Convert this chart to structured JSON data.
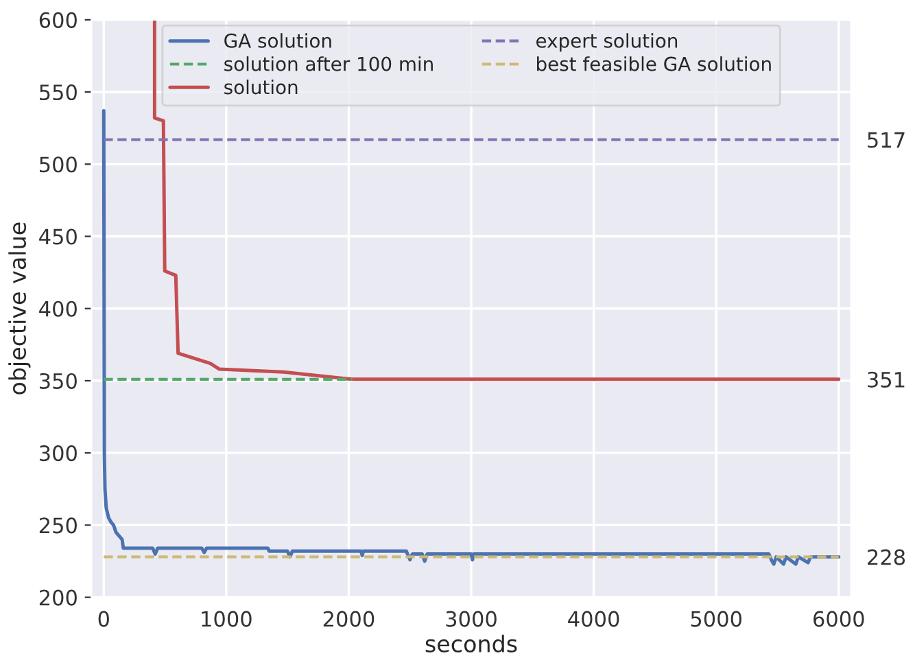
{
  "chart_data": {
    "type": "line",
    "xlabel": "seconds",
    "ylabel": "objective value",
    "xlim": [
      -100,
      6100
    ],
    "ylim": [
      200,
      600
    ],
    "xticks": [
      0,
      1000,
      2000,
      3000,
      4000,
      5000,
      6000
    ],
    "yticks": [
      200,
      250,
      300,
      350,
      400,
      450,
      500,
      550,
      600
    ],
    "grid": true,
    "legend": "top",
    "series": [
      {
        "name": "GA solution",
        "color": "#4c72b0",
        "line_style": "solid",
        "x": [
          0,
          5,
          10,
          20,
          40,
          60,
          80,
          100,
          130,
          150,
          160,
          400,
          420,
          440,
          800,
          820,
          840,
          1340,
          1350,
          1500,
          1520,
          1540,
          2100,
          2110,
          2120,
          2470,
          2480,
          2500,
          2520,
          2600,
          2620,
          2640,
          3000,
          3010,
          3020,
          5430,
          5450,
          5470,
          5490,
          5550,
          5570,
          5650,
          5670,
          5750,
          5770,
          6000
        ],
        "values": [
          537,
          300,
          275,
          262,
          255,
          252,
          250,
          245,
          242,
          240,
          234,
          234,
          230,
          234,
          234,
          231,
          234,
          234,
          232,
          232,
          228,
          232,
          232,
          229,
          232,
          232,
          230,
          226,
          230,
          230,
          225,
          230,
          230,
          226,
          230,
          230,
          226,
          223,
          228,
          223,
          228,
          223,
          228,
          224,
          228,
          228
        ]
      },
      {
        "name": "solution after 100 min",
        "color": "#55a868",
        "line_style": "dashed",
        "x": [
          0,
          2030
        ],
        "values": [
          351,
          351
        ]
      },
      {
        "name": "solution",
        "color": "#c44e52",
        "line_style": "solid",
        "x": [
          415,
          415,
          487,
          498,
          588,
          607,
          869,
          944,
          1468,
          2030,
          6000
        ],
        "values": [
          600,
          532,
          530,
          426,
          423,
          369,
          362,
          358,
          356,
          351,
          351
        ]
      },
      {
        "name": "expert solution",
        "color": "#8172b2",
        "line_style": "dashed",
        "x": [
          0,
          6000
        ],
        "values": [
          517,
          517
        ]
      },
      {
        "name": "best feasible GA solution",
        "color": "#ccb974",
        "line_style": "dashed",
        "x": [
          0,
          6000
        ],
        "values": [
          228,
          228
        ]
      }
    ],
    "y2lim": [
      200,
      600
    ],
    "y2ticks": [
      228,
      351,
      517
    ]
  }
}
